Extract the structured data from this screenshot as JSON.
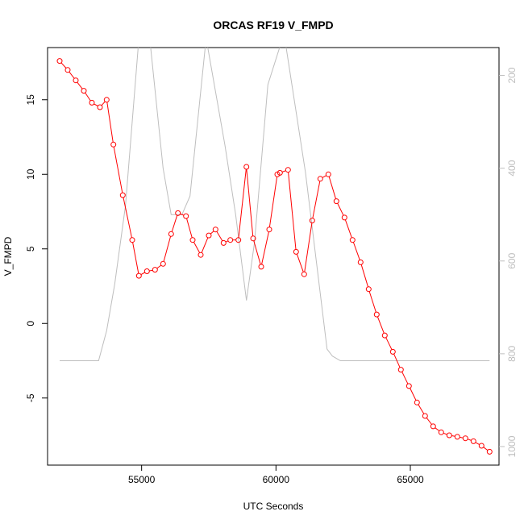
{
  "chart_data": {
    "type": "line",
    "title": "ORCAS RF19 V_FMPD",
    "xlabel": "UTC Seconds",
    "ylabel": "V_FMPD",
    "xlim": [
      51500,
      68300
    ],
    "ylim": [
      -9.5,
      18.5
    ],
    "x_ticks": [
      55000,
      60000,
      65000
    ],
    "y_ticks": [
      -5,
      0,
      5,
      10,
      15
    ],
    "y2_lim": [
      1040,
      140
    ],
    "y2_ticks": [
      200,
      400,
      600,
      800,
      1000
    ],
    "grid": false,
    "colors": {
      "primary": "#ff0000",
      "secondary": "#bebebe",
      "axis": "#000000"
    },
    "series": [
      {
        "role": "primary",
        "marker": "open-circle",
        "x": [
          51950,
          52250,
          52550,
          52850,
          53150,
          53450,
          53700,
          53950,
          54300,
          54650,
          54900,
          55200,
          55500,
          55800,
          56100,
          56350,
          56650,
          56900,
          57200,
          57500,
          57750,
          58050,
          58300,
          58600,
          58900,
          59150,
          59450,
          59750,
          60050,
          60150,
          60450,
          60750,
          61050,
          61350,
          61650,
          61950,
          62250,
          62550,
          62850,
          63150,
          63450,
          63750,
          64050,
          64350,
          64650,
          64950,
          65250,
          65550,
          65850,
          66150,
          66450,
          66750,
          67050,
          67350,
          67650,
          67950
        ],
        "values": [
          17.6,
          17.0,
          16.3,
          15.6,
          14.8,
          14.5,
          15.0,
          12.0,
          8.6,
          5.6,
          3.2,
          3.5,
          3.6,
          4.0,
          6.0,
          7.4,
          7.2,
          5.6,
          4.6,
          5.9,
          6.3,
          5.4,
          5.6,
          5.6,
          10.5,
          5.7,
          3.8,
          6.3,
          10.0,
          10.1,
          10.3,
          4.8,
          3.3,
          6.9,
          9.7,
          10.0,
          8.2,
          7.1,
          5.6,
          4.1,
          2.3,
          0.6,
          -0.8,
          -1.9,
          -3.1,
          -4.2,
          -5.3,
          -6.2,
          -6.9,
          -7.3,
          -7.5,
          -7.6,
          -7.7,
          -7.9,
          -8.2,
          -8.6
        ]
      },
      {
        "role": "secondary",
        "marker": "none",
        "x": [
          51950,
          53400,
          53700,
          54000,
          54400,
          54900,
          55300,
          55800,
          56100,
          56500,
          56800,
          57400,
          58100,
          58500,
          58900,
          59200,
          59700,
          60300,
          61100,
          61900,
          62100,
          62400,
          67950
        ],
        "values": [
          815,
          815,
          750,
          650,
          480,
          120,
          120,
          400,
          500,
          500,
          460,
          120,
          350,
          500,
          685,
          560,
          220,
          110,
          410,
          790,
          805,
          815,
          815
        ]
      }
    ]
  }
}
